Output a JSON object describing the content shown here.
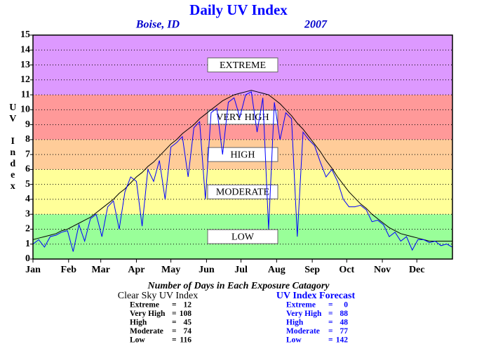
{
  "chart_data": {
    "type": "line",
    "title": "Daily UV Index",
    "subtitle_left": "Boise, ID",
    "subtitle_right": "2007",
    "y_label": "UV Index",
    "xlim": [
      0,
      365
    ],
    "xticks": [
      {
        "value": 0,
        "label": "Jan"
      },
      {
        "value": 31,
        "label": "Feb"
      },
      {
        "value": 59,
        "label": "Mar"
      },
      {
        "value": 90,
        "label": "Apr"
      },
      {
        "value": 120,
        "label": "May"
      },
      {
        "value": 151,
        "label": "Jun"
      },
      {
        "value": 181,
        "label": "Jul"
      },
      {
        "value": 212,
        "label": "Aug"
      },
      {
        "value": 243,
        "label": "Sep"
      },
      {
        "value": 273,
        "label": "Oct"
      },
      {
        "value": 304,
        "label": "Nov"
      },
      {
        "value": 334,
        "label": "Dec"
      }
    ],
    "ylim": [
      0,
      15
    ],
    "yticks": [
      0,
      1,
      2,
      3,
      4,
      5,
      6,
      7,
      8,
      9,
      10,
      11,
      12,
      13,
      14,
      15
    ],
    "grid": true,
    "bands": [
      {
        "name": "LOW",
        "from": 0,
        "to": 3,
        "color": "#99ff99"
      },
      {
        "name": "MODERATE",
        "from": 3,
        "to": 6,
        "color": "#ffff99"
      },
      {
        "name": "HIGH",
        "from": 6,
        "to": 8,
        "color": "#ffcc99"
      },
      {
        "name": "VERY HIGH",
        "from": 8,
        "to": 11,
        "color": "#ff9999"
      },
      {
        "name": "EXTREME",
        "from": 11,
        "to": 15,
        "color": "#dd99ff"
      }
    ],
    "x": [
      0,
      5,
      10,
      15,
      20,
      25,
      30,
      35,
      40,
      45,
      50,
      55,
      60,
      65,
      70,
      75,
      80,
      85,
      90,
      95,
      100,
      105,
      110,
      115,
      120,
      125,
      130,
      135,
      140,
      145,
      150,
      155,
      160,
      165,
      170,
      175,
      180,
      185,
      190,
      195,
      200,
      205,
      210,
      215,
      220,
      225,
      230,
      235,
      240,
      245,
      250,
      255,
      260,
      265,
      270,
      275,
      280,
      285,
      290,
      295,
      300,
      305,
      310,
      315,
      320,
      325,
      330,
      335,
      340,
      345,
      350,
      355,
      360,
      365
    ],
    "series": [
      {
        "name": "Clear Sky UV Index",
        "color": "#000000",
        "values": [
          1.3,
          1.4,
          1.5,
          1.6,
          1.7,
          1.9,
          2.0,
          2.2,
          2.4,
          2.6,
          2.8,
          3.1,
          3.4,
          3.7,
          4.0,
          4.4,
          4.7,
          5.1,
          5.5,
          5.8,
          6.2,
          6.5,
          6.9,
          7.3,
          7.7,
          8.0,
          8.4,
          8.7,
          9.0,
          9.4,
          9.7,
          10.0,
          10.3,
          10.6,
          10.8,
          11.0,
          11.1,
          11.2,
          11.3,
          11.2,
          11.1,
          11.0,
          10.7,
          10.4,
          10.0,
          9.6,
          9.1,
          8.7,
          8.2,
          7.7,
          7.2,
          6.6,
          6.1,
          5.5,
          5.0,
          4.5,
          4.1,
          3.7,
          3.4,
          3.0,
          2.7,
          2.4,
          2.1,
          1.9,
          1.7,
          1.6,
          1.5,
          1.4,
          1.3,
          1.2,
          1.2,
          1.2,
          1.2,
          1.2
        ]
      },
      {
        "name": "UV Index Forecast",
        "color": "#0000ff",
        "values": [
          1.0,
          1.3,
          0.8,
          1.5,
          1.6,
          1.8,
          1.9,
          0.5,
          2.3,
          1.2,
          2.7,
          3.0,
          1.5,
          3.5,
          3.9,
          2.0,
          4.5,
          5.5,
          5.2,
          2.2,
          6.0,
          5.2,
          6.6,
          4.0,
          7.5,
          7.8,
          8.2,
          5.5,
          8.8,
          9.2,
          4.0,
          9.8,
          10.1,
          7.0,
          10.5,
          10.8,
          9.5,
          11.0,
          11.2,
          8.5,
          10.8,
          2.0,
          10.5,
          8.0,
          9.8,
          9.4,
          1.5,
          8.5,
          8.0,
          7.6,
          6.5,
          5.5,
          6.0,
          5.2,
          4.0,
          3.5,
          3.5,
          3.6,
          3.3,
          2.5,
          2.6,
          2.3,
          1.5,
          1.8,
          1.2,
          1.5,
          0.6,
          1.3,
          1.3,
          1.1,
          1.2,
          0.9,
          1.0,
          0.8
        ]
      }
    ],
    "summary": {
      "heading": "Number of Days in Each Exposure Catagory",
      "separator": "=",
      "groups": [
        {
          "title": "Clear Sky UV Index",
          "color": "#000000",
          "rows": [
            {
              "name": "Extreme",
              "count": 12
            },
            {
              "name": "Very High",
              "count": 108
            },
            {
              "name": "High",
              "count": 45
            },
            {
              "name": "Moderate",
              "count": 74
            },
            {
              "name": "Low",
              "count": 116
            }
          ]
        },
        {
          "title": "UV Index Forecast",
          "color": "#0000ff",
          "rows": [
            {
              "name": "Extreme",
              "count": 0
            },
            {
              "name": "Very High",
              "count": 88
            },
            {
              "name": "High",
              "count": 48
            },
            {
              "name": "Moderate",
              "count": 77
            },
            {
              "name": "Low",
              "count": 142
            }
          ]
        }
      ]
    }
  }
}
